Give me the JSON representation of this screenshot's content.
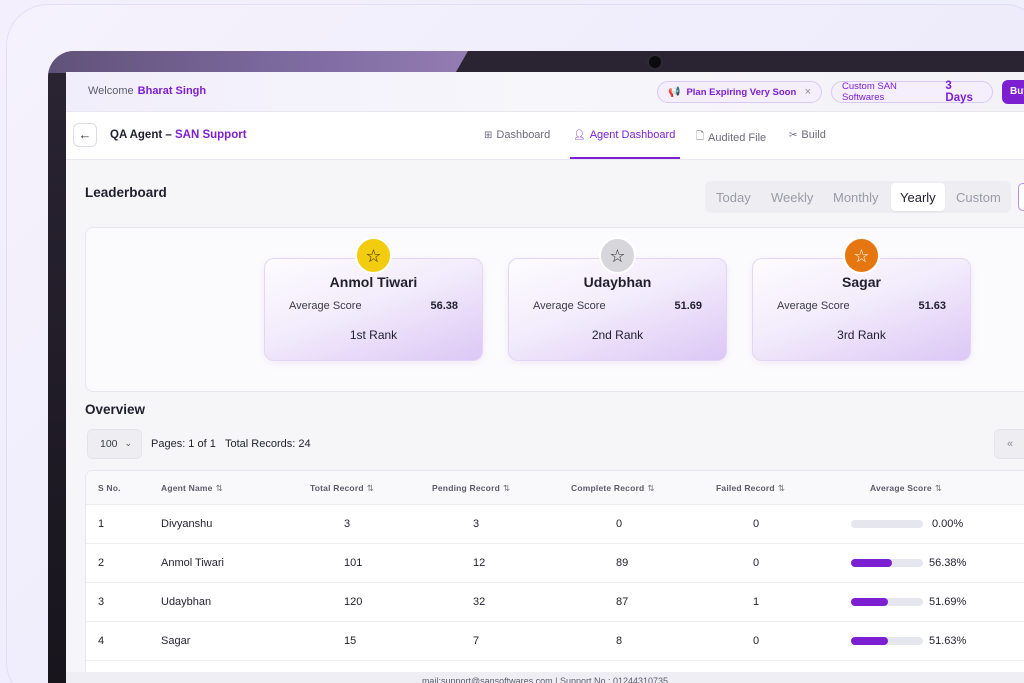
{
  "topbar": {
    "welcome_label": "Welcome",
    "user_name": "Bharat Singh",
    "plan_warning": "Plan Expiring Very Soon",
    "custom_label": "Custom SAN Softwares",
    "days_left": "3 Days",
    "buy_label": "Buy"
  },
  "navbar": {
    "title_prefix": "QA Agent –",
    "title_accent": "SAN Support",
    "tabs": [
      {
        "label": "Dashboard",
        "icon": "grid-icon"
      },
      {
        "label": "Agent Dashboard",
        "icon": "user-icon",
        "active": true
      },
      {
        "label": "Audited File",
        "icon": "file-icon"
      },
      {
        "label": "Build",
        "icon": "tools-icon"
      }
    ]
  },
  "leaderboard": {
    "title": "Leaderboard",
    "periods": [
      "Today",
      "Weekly",
      "Monthly",
      "Yearly",
      "Custom"
    ],
    "active_period": "Yearly",
    "cards": [
      {
        "name": "Anmol Tiwari",
        "avg_label": "Average Score",
        "avg_value": "56.38",
        "rank": "1st Rank",
        "medal": "gold"
      },
      {
        "name": "Udaybhan",
        "avg_label": "Average Score",
        "avg_value": "51.69",
        "rank": "2nd Rank",
        "medal": "silver"
      },
      {
        "name": "Sagar",
        "avg_label": "Average Score",
        "avg_value": "51.63",
        "rank": "3rd Rank",
        "medal": "bronze"
      }
    ]
  },
  "overview": {
    "title": "Overview",
    "page_size": "100",
    "pages_text": "Pages: 1 of 1",
    "records_text": "Total Records: 24",
    "first_page_label": "«",
    "columns": [
      "S No.",
      "Agent Name",
      "Total Record",
      "Pending Record",
      "Complete Record",
      "Failed Record",
      "Average Score"
    ],
    "rows": [
      {
        "sno": "1",
        "name": "Divyanshu",
        "total": "3",
        "pending": "3",
        "complete": "0",
        "failed": "0",
        "score": 0.0,
        "score_label": "0.00%"
      },
      {
        "sno": "2",
        "name": "Anmol Tiwari",
        "total": "101",
        "pending": "12",
        "complete": "89",
        "failed": "0",
        "score": 56.38,
        "score_label": "56.38%"
      },
      {
        "sno": "3",
        "name": "Udaybhan",
        "total": "120",
        "pending": "32",
        "complete": "87",
        "failed": "1",
        "score": 51.69,
        "score_label": "51.69%"
      },
      {
        "sno": "4",
        "name": "Sagar",
        "total": "15",
        "pending": "7",
        "complete": "8",
        "failed": "0",
        "score": 51.63,
        "score_label": "51.63%"
      }
    ]
  },
  "footer": {
    "text": "mail:support@sansoftwares.com | Support No.: 01244310735"
  },
  "colors": {
    "accent": "#7c1fd1",
    "gold": "#f2cd0f",
    "silver": "#d6d6db",
    "bronze": "#e6760f"
  }
}
